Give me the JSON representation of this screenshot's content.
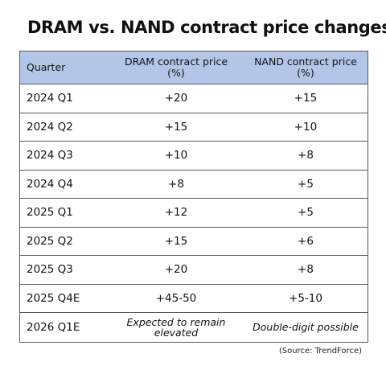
{
  "chart_data": {
    "type": "table",
    "title": "DRAM vs. NAND contract price changes",
    "columns": [
      "Quarter",
      "DRAM contract price (%)",
      "NAND contract price (%)"
    ],
    "rows": [
      [
        "2024 Q1",
        "+20",
        "+15"
      ],
      [
        "2024 Q2",
        "+15",
        "+10"
      ],
      [
        "2024 Q3",
        "+10",
        "+8"
      ],
      [
        "2024 Q4",
        "+8",
        "+5"
      ],
      [
        "2025 Q1",
        "+12",
        "+5"
      ],
      [
        "2025 Q2",
        "+15",
        "+6"
      ],
      [
        "2025 Q3",
        "+20",
        "+8"
      ],
      [
        "2025 Q4E",
        "+45-50",
        "+5-10"
      ],
      [
        "2026 Q1E",
        "Expected to remain elevated",
        "Double-digit possible"
      ]
    ],
    "source": "(Source: TrendForce)",
    "header_color": "#b4c6e7"
  }
}
